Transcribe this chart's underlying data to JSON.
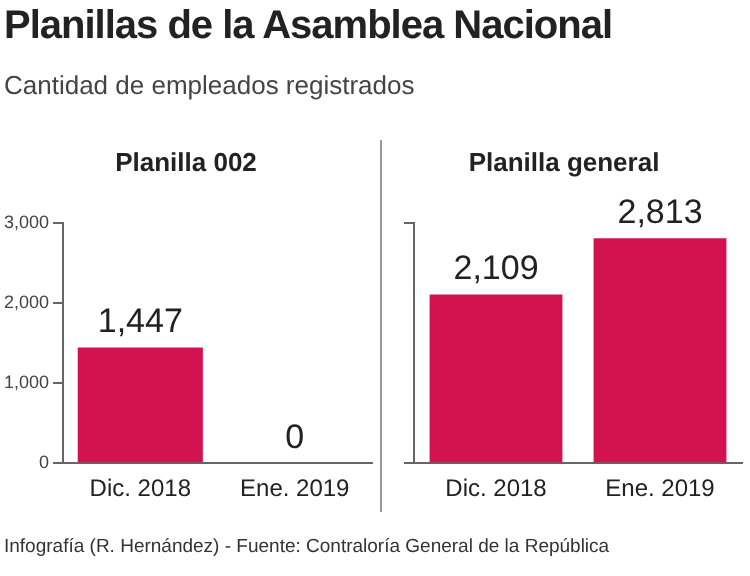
{
  "chart_data": [
    {
      "type": "other",
      "title": "Planillas de la Asamblea Nacional",
      "subtitle": "Cantidad de empleados registrados"
    },
    {
      "type": "bar",
      "title": "Planilla 002",
      "categories": [
        "Dic. 2018",
        "Ene. 2019"
      ],
      "values": [
        1447,
        0
      ],
      "value_labels": [
        "1,447",
        "0"
      ],
      "color": "#d3134f",
      "ylim": [
        0,
        3000
      ],
      "yticks": [
        {
          "value": 0,
          "label": "0"
        },
        {
          "value": 1000,
          "label": "1,000"
        },
        {
          "value": 2000,
          "label": "2,000"
        },
        {
          "value": 3000,
          "label": "3,000"
        }
      ],
      "grid": false
    },
    {
      "type": "bar",
      "title": "Planilla general",
      "categories": [
        "Dic. 2018",
        "Ene. 2019"
      ],
      "values": [
        2109,
        2813
      ],
      "value_labels": [
        "2,109",
        "2,813"
      ],
      "color": "#d3134f",
      "ylim": [
        0,
        3000
      ],
      "tick_labels": "x",
      "grid": false,
      "annotations": [
        "Infografía (R. Hernández)  - Fuente: Contraloría General de la República"
      ]
    }
  ]
}
